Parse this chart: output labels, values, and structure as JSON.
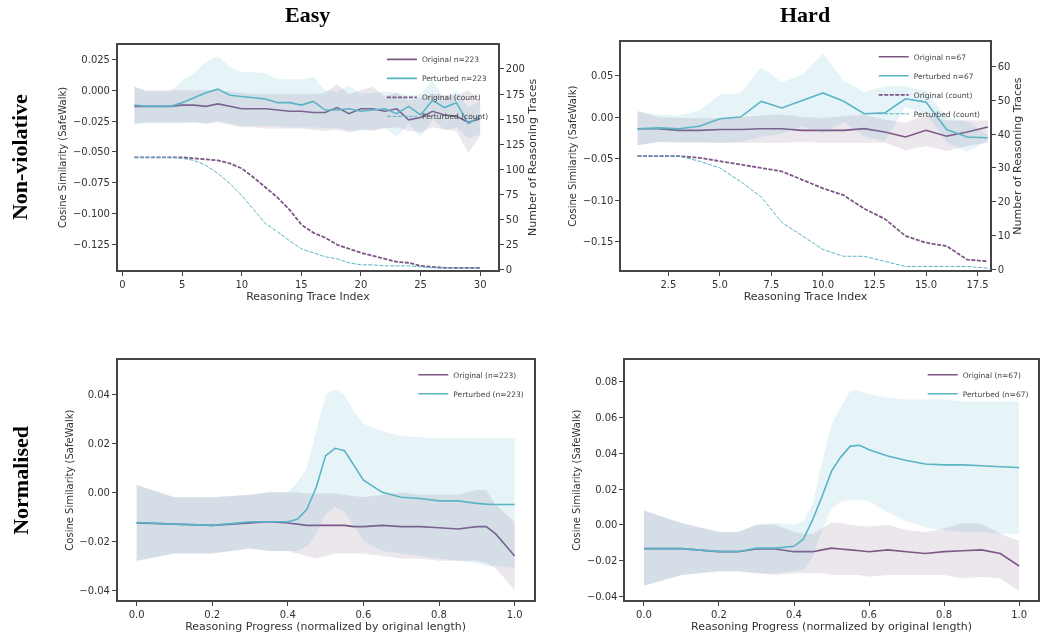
{
  "chart_data": [
    {
      "type": "line",
      "title": "Easy",
      "annotations": [
        "Non-violative"
      ],
      "xlabel": "Reasoning Trace Index",
      "ylabel": "Cosine Similarity (SafeWalk)",
      "y2label": "Number of Reasoning Traces",
      "legend": "top right",
      "x": [
        1,
        2,
        3,
        4,
        5,
        6,
        7,
        8,
        9,
        10,
        11,
        12,
        13,
        14,
        15,
        16,
        17,
        18,
        19,
        20,
        21,
        22,
        23,
        24,
        25,
        26,
        27,
        28,
        29,
        30
      ],
      "xlim": [
        -0.4,
        31.5
      ],
      "xticks": [
        0,
        5,
        10,
        15,
        20,
        25,
        30
      ],
      "ylim": [
        -0.146,
        0.037
      ],
      "yticks": [
        {
          "value": 0.025,
          "label": "0.025"
        },
        {
          "value": 0,
          "label": "0.000"
        },
        {
          "value": -0.025,
          "label": "−0.025"
        },
        {
          "value": -0.05,
          "label": "−0.050"
        },
        {
          "value": -0.075,
          "label": "−0.075"
        },
        {
          "value": -0.1,
          "label": "−0.100"
        },
        {
          "value": -0.125,
          "label": "−0.125"
        }
      ],
      "y2lim": [
        0,
        224
      ],
      "y2ticks": [
        0,
        25,
        50,
        75,
        100,
        125,
        150,
        175,
        200
      ],
      "series": [
        {
          "name": "Original n=223",
          "color": "#7e5686",
          "values": [
            -0.013,
            -0.013,
            -0.013,
            -0.013,
            -0.012,
            -0.012,
            -0.013,
            -0.011,
            -0.013,
            -0.015,
            -0.015,
            -0.015,
            -0.016,
            -0.017,
            -0.017,
            -0.018,
            -0.018,
            -0.014,
            -0.019,
            -0.015,
            -0.015,
            -0.017,
            -0.015,
            -0.024,
            -0.022,
            -0.017,
            -0.02,
            -0.021,
            -0.026,
            -0.023
          ],
          "upper": [
            0.003,
            0.0,
            0.0,
            0.0,
            0.0,
            0.0,
            0.0,
            0.0,
            -0.001,
            -0.002,
            -0.003,
            -0.003,
            -0.003,
            -0.003,
            -0.003,
            -0.003,
            -0.002,
            0.005,
            -0.003,
            0.0,
            0.003,
            -0.005,
            -0.002,
            -0.008,
            -0.006,
            -0.003,
            -0.004,
            -0.004,
            0.0,
            -0.008
          ],
          "lower": [
            -0.027,
            -0.026,
            -0.026,
            -0.026,
            -0.026,
            -0.026,
            -0.027,
            -0.026,
            -0.028,
            -0.03,
            -0.03,
            -0.031,
            -0.031,
            -0.031,
            -0.031,
            -0.032,
            -0.033,
            -0.032,
            -0.034,
            -0.032,
            -0.033,
            -0.031,
            -0.03,
            -0.033,
            -0.034,
            -0.03,
            -0.032,
            -0.033,
            -0.051,
            -0.037
          ]
        },
        {
          "name": "Perturbed n=223",
          "color": "#5ab4c6",
          "values": [
            -0.012,
            -0.013,
            -0.013,
            -0.013,
            -0.01,
            -0.006,
            -0.002,
            0.001,
            -0.004,
            -0.005,
            -0.006,
            -0.007,
            -0.01,
            -0.01,
            -0.012,
            -0.009,
            -0.016,
            -0.016,
            -0.015,
            -0.017,
            -0.016,
            -0.015,
            -0.019,
            -0.013,
            -0.02,
            -0.008,
            -0.014,
            -0.01,
            -0.027,
            -0.021
          ],
          "upper": [
            0.003,
            -0.001,
            -0.001,
            -0.001,
            0.008,
            0.014,
            0.023,
            0.028,
            0.019,
            0.015,
            0.015,
            0.014,
            0.009,
            0.009,
            0.009,
            0.011,
            0.0,
            -0.001,
            0.004,
            -0.003,
            -0.002,
            -0.001,
            -0.002,
            -0.004,
            -0.003,
            0.008,
            -0.007,
            0.0,
            -0.014,
            -0.009
          ],
          "lower": [
            -0.028,
            -0.027,
            -0.027,
            -0.027,
            -0.027,
            -0.026,
            -0.027,
            -0.025,
            -0.027,
            -0.029,
            -0.029,
            -0.029,
            -0.029,
            -0.03,
            -0.03,
            -0.03,
            -0.031,
            -0.03,
            -0.033,
            -0.032,
            -0.032,
            -0.03,
            -0.038,
            -0.027,
            -0.038,
            -0.024,
            -0.032,
            -0.03,
            -0.039,
            -0.036
          ]
        },
        {
          "name": "Original (count)",
          "color": "#7e5686",
          "axis": "y2",
          "line_style": "dashed",
          "values": [
            112,
            112,
            112,
            112,
            112,
            111,
            110,
            109,
            106,
            101,
            92,
            82,
            72,
            60,
            45,
            37,
            32,
            25,
            21,
            17,
            14,
            11,
            8,
            7,
            4,
            3,
            2,
            2,
            2,
            2
          ]
        },
        {
          "name": "Perturbed (count)",
          "color": "#5ab4c6",
          "axis": "y2",
          "line_style": "dashed",
          "values": [
            112,
            112,
            112,
            112,
            111,
            109,
            104,
            96,
            86,
            74,
            60,
            46,
            38,
            29,
            21,
            17,
            13,
            11,
            7,
            5,
            5,
            4,
            4,
            4,
            3,
            2,
            2,
            2,
            2,
            2
          ]
        }
      ]
    },
    {
      "type": "line",
      "title": "Hard",
      "xlabel": "Reasoning Trace Index",
      "ylabel": "Cosine Similarity (SafeWalk)",
      "y2label": "Number of Reasoning Traces",
      "legend": "top right",
      "x": [
        1,
        2,
        3,
        4,
        5,
        6,
        7,
        8,
        9,
        10,
        11,
        12,
        13,
        14,
        15,
        16,
        17,
        18
      ],
      "xlim": [
        0.2,
        18.1
      ],
      "xticks": [
        {
          "value": 2.5,
          "label": "2.5"
        },
        {
          "value": 5,
          "label": "5.0"
        },
        {
          "value": 7.5,
          "label": "7.5"
        },
        {
          "value": 10,
          "label": "10.0"
        },
        {
          "value": 12.5,
          "label": "12.5"
        },
        {
          "value": 15,
          "label": "15.0"
        },
        {
          "value": 17.5,
          "label": "17.5"
        }
      ],
      "ylim": [
        -0.184,
        0.09
      ],
      "yticks": [
        {
          "value": 0.05,
          "label": "0.05"
        },
        {
          "value": 0,
          "label": "0.00"
        },
        {
          "value": -0.05,
          "label": "−0.05"
        },
        {
          "value": -0.1,
          "label": "−0.10"
        },
        {
          "value": -0.15,
          "label": "−0.15"
        }
      ],
      "y2lim": [
        0,
        67
      ],
      "y2ticks": [
        0,
        10,
        20,
        30,
        40,
        50,
        60
      ],
      "series": [
        {
          "name": "Original n=67",
          "color": "#7e5686",
          "values": [
            -0.014,
            -0.014,
            -0.016,
            -0.016,
            -0.015,
            -0.015,
            -0.014,
            -0.014,
            -0.016,
            -0.016,
            -0.016,
            -0.014,
            -0.018,
            -0.024,
            -0.016,
            -0.023,
            -0.018,
            -0.012
          ],
          "upper": [
            0.007,
            0.0,
            -0.001,
            -0.001,
            -0.001,
            0.0,
            0.002,
            0.003,
            0.0,
            -0.001,
            0.001,
            0.003,
            -0.003,
            -0.007,
            0.003,
            -0.004,
            -0.004,
            -0.004
          ],
          "lower": [
            -0.034,
            -0.03,
            -0.031,
            -0.031,
            -0.031,
            -0.031,
            -0.031,
            -0.031,
            -0.03,
            -0.031,
            -0.031,
            -0.031,
            -0.031,
            -0.04,
            -0.035,
            -0.041,
            -0.035,
            -0.031
          ]
        },
        {
          "name": "Perturbed n=67",
          "color": "#5ab4c6",
          "values": [
            -0.014,
            -0.013,
            -0.014,
            -0.011,
            -0.002,
            0.0,
            0.019,
            0.011,
            0.02,
            0.029,
            0.019,
            0.004,
            0.005,
            0.022,
            0.018,
            -0.015,
            -0.024,
            -0.025
          ],
          "upper": [
            0.007,
            0.003,
            0.002,
            0.008,
            0.027,
            0.029,
            0.06,
            0.042,
            0.051,
            0.077,
            0.044,
            0.03,
            0.037,
            0.037,
            0.031,
            0.0,
            -0.005,
            -0.022
          ],
          "lower": [
            -0.034,
            -0.03,
            -0.03,
            -0.03,
            -0.031,
            -0.03,
            -0.024,
            -0.02,
            -0.011,
            -0.02,
            -0.006,
            -0.023,
            -0.029,
            0.012,
            0.004,
            -0.03,
            -0.042,
            -0.028
          ]
        },
        {
          "name": "Original (count)",
          "color": "#7e5686",
          "axis": "y2",
          "line_style": "dashed",
          "values": [
            33.5,
            33.5,
            33.5,
            33,
            32,
            31,
            30,
            29,
            26.5,
            24,
            22,
            18,
            15,
            10,
            8,
            7,
            3,
            2.5
          ]
        },
        {
          "name": "Perturbed (count)",
          "color": "#5ab4c6",
          "axis": "y2",
          "line_style": "dashed",
          "values": [
            33.5,
            33.5,
            33.5,
            32,
            30,
            26,
            21.5,
            14,
            10,
            6,
            4,
            4,
            2.5,
            1,
            1,
            1,
            1,
            0.5
          ]
        }
      ]
    },
    {
      "type": "line",
      "annotations": [
        "Normalised"
      ],
      "xlabel": "Reasoning Progress (normalized by original length)",
      "ylabel": "Cosine Similarity (SafeWalk)",
      "legend": "top right",
      "x": [
        0,
        0.1,
        0.2,
        0.3,
        0.35,
        0.4,
        0.425,
        0.45,
        0.475,
        0.5,
        0.525,
        0.55,
        0.575,
        0.6,
        0.65,
        0.7,
        0.75,
        0.8,
        0.85,
        0.9,
        0.925,
        0.95,
        1.0
      ],
      "xlim": [
        -0.05,
        1.05
      ],
      "xticks": [
        {
          "value": 0,
          "label": "0.0"
        },
        {
          "value": 0.2,
          "label": "0.2"
        },
        {
          "value": 0.4,
          "label": "0.4"
        },
        {
          "value": 0.6,
          "label": "0.6"
        },
        {
          "value": 0.8,
          "label": "0.8"
        },
        {
          "value": 1,
          "label": "1.0"
        }
      ],
      "ylim": [
        -0.044,
        0.054
      ],
      "yticks": [
        {
          "value": -0.04,
          "label": "−0.04"
        },
        {
          "value": -0.02,
          "label": "−0.02"
        },
        {
          "value": 0,
          "label": "0.00"
        },
        {
          "value": 0.02,
          "label": "0.02"
        },
        {
          "value": 0.04,
          "label": "0.04"
        }
      ],
      "series": [
        {
          "name": "Original (n=223)",
          "color": "#7e5686",
          "values": [
            -0.0125,
            -0.013,
            -0.0135,
            -0.0125,
            -0.012,
            -0.0125,
            -0.013,
            -0.0135,
            -0.0135,
            -0.0135,
            -0.0135,
            -0.0135,
            -0.014,
            -0.014,
            -0.0135,
            -0.014,
            -0.014,
            -0.0145,
            -0.015,
            -0.014,
            -0.014,
            -0.017,
            -0.026
          ],
          "upper": [
            0.003,
            -0.002,
            -0.002,
            -0.001,
            0.0,
            0.0,
            0.0,
            -0.0005,
            -0.0005,
            -0.0005,
            -0.0005,
            -0.001,
            -0.0015,
            -0.002,
            -0.001,
            0.0,
            -0.001,
            -0.001,
            -0.001,
            0.001,
            0.001,
            -0.005,
            -0.012
          ],
          "lower": [
            -0.028,
            -0.025,
            -0.025,
            -0.023,
            -0.024,
            -0.024,
            -0.025,
            -0.026,
            -0.027,
            -0.026,
            -0.025,
            -0.025,
            -0.025,
            -0.025,
            -0.026,
            -0.027,
            -0.027,
            -0.028,
            -0.028,
            -0.028,
            -0.029,
            -0.031,
            -0.04
          ]
        },
        {
          "name": "Perturbed (n=223)",
          "color": "#5ab4c6",
          "values": [
            -0.0123,
            -0.013,
            -0.0135,
            -0.012,
            -0.012,
            -0.012,
            -0.011,
            -0.007,
            0.002,
            0.015,
            0.018,
            0.017,
            0.011,
            0.005,
            0.0,
            -0.002,
            -0.0025,
            -0.0035,
            -0.0035,
            -0.0045,
            -0.0048,
            -0.005,
            -0.005
          ],
          "upper": [
            0.003,
            -0.002,
            -0.002,
            -0.001,
            0.0,
            0.0,
            0.004,
            0.01,
            0.025,
            0.04,
            0.042,
            0.04,
            0.033,
            0.028,
            0.025,
            0.023,
            0.0225,
            0.022,
            0.022,
            0.022,
            0.022,
            0.022,
            0.022
          ],
          "lower": [
            -0.028,
            -0.025,
            -0.025,
            -0.023,
            -0.024,
            -0.024,
            -0.024,
            -0.022,
            -0.017,
            -0.009,
            -0.006,
            -0.008,
            -0.014,
            -0.02,
            -0.024,
            -0.025,
            -0.026,
            -0.027,
            -0.028,
            -0.029,
            -0.03,
            -0.03,
            -0.031
          ]
        }
      ]
    },
    {
      "type": "line",
      "xlabel": "Reasoning Progress (normalized by original length)",
      "ylabel": "Cosine Similarity (SafeWalk)",
      "legend": "top right",
      "x": [
        0,
        0.1,
        0.2,
        0.25,
        0.3,
        0.35,
        0.4,
        0.425,
        0.45,
        0.475,
        0.5,
        0.525,
        0.55,
        0.575,
        0.6,
        0.65,
        0.7,
        0.75,
        0.8,
        0.85,
        0.9,
        0.95,
        1.0
      ],
      "xlim": [
        -0.05,
        1.05
      ],
      "xticks": [
        {
          "value": 0,
          "label": "0.0"
        },
        {
          "value": 0.2,
          "label": "0.2"
        },
        {
          "value": 0.4,
          "label": "0.4"
        },
        {
          "value": 0.6,
          "label": "0.6"
        },
        {
          "value": 0.8,
          "label": "0.8"
        },
        {
          "value": 1,
          "label": "1.0"
        }
      ],
      "ylim": [
        -0.042,
        0.092
      ],
      "yticks": [
        {
          "value": -0.04,
          "label": "−0.04"
        },
        {
          "value": -0.02,
          "label": "−0.02"
        },
        {
          "value": 0,
          "label": "0.00"
        },
        {
          "value": 0.02,
          "label": "0.02"
        },
        {
          "value": 0.04,
          "label": "0.04"
        },
        {
          "value": 0.06,
          "label": "0.06"
        },
        {
          "value": 0.08,
          "label": "0.08"
        }
      ],
      "series": [
        {
          "name": "Original (n=67)",
          "color": "#7e5686",
          "values": [
            -0.0133,
            -0.0133,
            -0.015,
            -0.015,
            -0.0135,
            -0.0135,
            -0.015,
            -0.015,
            -0.015,
            -0.014,
            -0.013,
            -0.0135,
            -0.014,
            -0.0145,
            -0.015,
            -0.014,
            -0.015,
            -0.016,
            -0.015,
            -0.0145,
            -0.014,
            -0.016,
            -0.023
          ],
          "upper": [
            0.008,
            0.001,
            -0.004,
            -0.004,
            0.0,
            0.0,
            -0.004,
            -0.005,
            -0.005,
            -0.002,
            0.0015,
            0.001,
            0.0,
            -0.0005,
            -0.001,
            0.0,
            -0.003,
            -0.004,
            -0.002,
            0.001,
            0.0005,
            -0.005,
            -0.009
          ],
          "lower": [
            -0.034,
            -0.028,
            -0.026,
            -0.026,
            -0.027,
            -0.028,
            -0.027,
            -0.027,
            -0.027,
            -0.027,
            -0.028,
            -0.028,
            -0.028,
            -0.028,
            -0.029,
            -0.028,
            -0.028,
            -0.028,
            -0.028,
            -0.03,
            -0.029,
            -0.03,
            -0.037
          ]
        },
        {
          "name": "Perturbed (n=67)",
          "color": "#5ab4c6",
          "values": [
            -0.0133,
            -0.0133,
            -0.015,
            -0.015,
            -0.013,
            -0.013,
            -0.012,
            -0.008,
            0.003,
            0.016,
            0.03,
            0.038,
            0.044,
            0.0445,
            0.042,
            0.0385,
            0.036,
            0.034,
            0.0335,
            0.0335,
            0.033,
            0.0325,
            0.032
          ],
          "upper": [
            0.008,
            0.001,
            -0.004,
            -0.004,
            0.0,
            0.001,
            0.0,
            0.002,
            0.012,
            0.035,
            0.056,
            0.066,
            0.075,
            0.075,
            0.073,
            0.071,
            0.07,
            0.07,
            0.07,
            0.069,
            0.069,
            0.069,
            0.069
          ],
          "lower": [
            -0.034,
            -0.028,
            -0.026,
            -0.026,
            -0.027,
            -0.027,
            -0.026,
            -0.025,
            -0.018,
            -0.003,
            0.009,
            0.013,
            0.014,
            0.014,
            0.013,
            0.007,
            0.002,
            -0.0015,
            -0.003,
            -0.004,
            -0.004,
            -0.005,
            -0.005
          ]
        }
      ]
    }
  ]
}
